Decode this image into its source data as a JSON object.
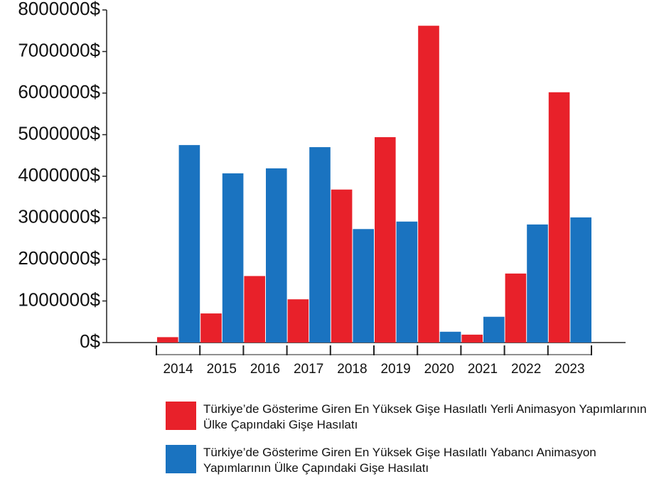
{
  "chart_data": {
    "type": "bar",
    "categories": [
      "2014",
      "2015",
      "2016",
      "2017",
      "2018",
      "2019",
      "2020",
      "2021",
      "2022",
      "2023"
    ],
    "series": [
      {
        "name": "Türkiye’de Gösterime Giren En Yüksek Gişe Hasılatlı Yerli Animasyon Yapımlarının Ülke Çapındaki Gişe Hasılatı",
        "color": "#e8212a",
        "values": [
          130000,
          700000,
          1600000,
          1040000,
          3680000,
          4940000,
          7620000,
          190000,
          1660000,
          6020000
        ]
      },
      {
        "name": "Türkiye’de Gösterime Giren En Yüksek Gişe Hasılatlı Yabancı Animasyon Yapımlarının Ülke Çapındaki Gişe Hasılatı",
        "color": "#1a73c0",
        "values": [
          4750000,
          4070000,
          4190000,
          4700000,
          2730000,
          2910000,
          260000,
          620000,
          2840000,
          3010000
        ]
      }
    ],
    "ylim": [
      0,
      8000000
    ],
    "yticks": [
      {
        "value": 0,
        "label": "0$"
      },
      {
        "value": 1000000,
        "label": "1000000$"
      },
      {
        "value": 2000000,
        "label": "2000000$"
      },
      {
        "value": 3000000,
        "label": "3000000$"
      },
      {
        "value": 4000000,
        "label": "4000000$"
      },
      {
        "value": 5000000,
        "label": "5000000$"
      },
      {
        "value": 6000000,
        "label": "6000000$"
      },
      {
        "value": 7000000,
        "label": "7000000$"
      },
      {
        "value": 8000000,
        "label": "8000000$"
      }
    ]
  }
}
